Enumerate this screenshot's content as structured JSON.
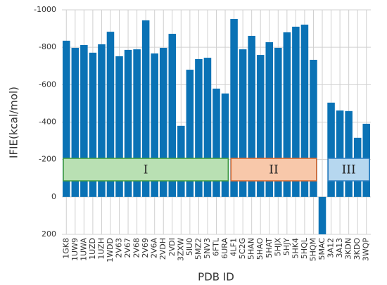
{
  "chart_data": {
    "type": "bar",
    "ylabel": "IFIE(kcal/mol)",
    "xlabel": "PDB ID",
    "categories": [
      "1GK8",
      "1UW9",
      "1UWA",
      "1UZD",
      "1UZH",
      "1WDD",
      "2V63",
      "2V67",
      "2V68",
      "2V69",
      "2V6A",
      "2VDH",
      "2VDI",
      "3ZXW",
      "5IU0",
      "5MZ2",
      "5NV3",
      "6FTL",
      "6URA",
      "4LF1",
      "5C2G",
      "5HAN",
      "5HAO",
      "5HAT",
      "5HJX",
      "5HJY",
      "5HK4",
      "5HQL",
      "5HQM",
      "5MAC",
      "3A12",
      "3A13",
      "3KDN",
      "3KDO",
      "3WQP"
    ],
    "values": [
      -835,
      -797,
      -812,
      -771,
      -816,
      -883,
      -752,
      -786,
      -789,
      -944,
      -767,
      -797,
      -872,
      -380,
      -680,
      -737,
      -744,
      -579,
      -553,
      -951,
      -789,
      -861,
      -759,
      -827,
      -797,
      -880,
      -910,
      -921,
      -733,
      200,
      -504,
      -462,
      -459,
      -316,
      -391
    ],
    "color": "#0a72b5",
    "ylim": [
      -1000,
      200
    ],
    "y_inverted": true,
    "yticks": [
      -1000,
      -800,
      -600,
      -400,
      -200,
      0,
      200
    ],
    "grid": true,
    "groups": [
      {
        "label": "I",
        "fill": "#b9e0b3",
        "stroke": "#3f9a3c"
      },
      {
        "label": "II",
        "fill": "#f8c8aa",
        "stroke": "#d9662a"
      },
      {
        "label": "III",
        "fill": "#b6d7ef",
        "stroke": "#2f7fc0"
      }
    ]
  }
}
